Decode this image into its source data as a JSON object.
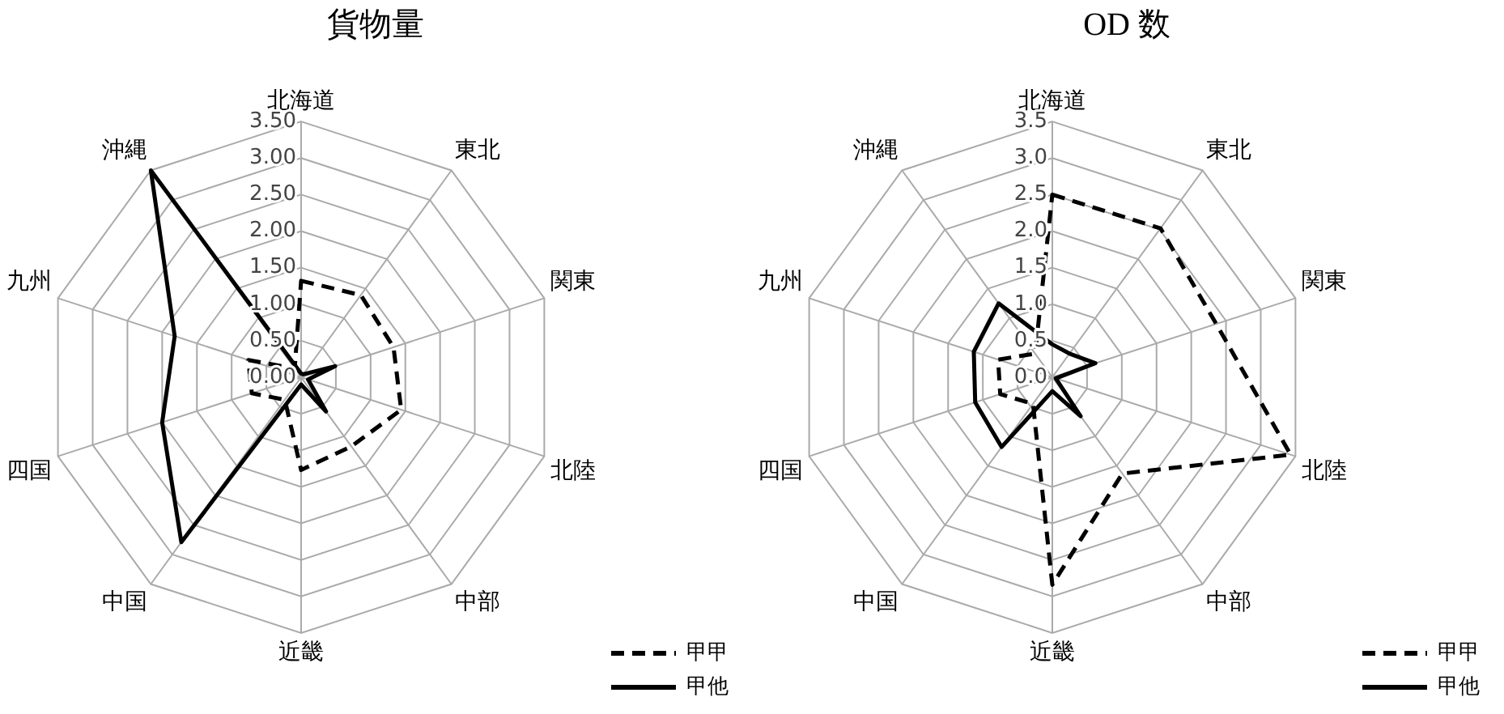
{
  "chart_data": [
    {
      "type": "radar",
      "title": "貨物量",
      "categories": [
        "北海道",
        "東北",
        "関東",
        "北陸",
        "中部",
        "近畿",
        "中国",
        "四国",
        "九州",
        "沖縄"
      ],
      "series": [
        {
          "name": "甲甲",
          "color": "#000000",
          "line_style": "dashed",
          "values": [
            1.32,
            1.39,
            1.33,
            1.44,
            1.17,
            1.27,
            0.38,
            0.71,
            0.76,
            0.15
          ]
        },
        {
          "name": "甲他",
          "color": "#000000",
          "line_style": "solid",
          "values": [
            0.05,
            0.05,
            0.49,
            0.1,
            0.58,
            0.1,
            2.79,
            2.0,
            1.82,
            3.5
          ]
        }
      ],
      "ylim": [
        0,
        3.5
      ],
      "yticks": [
        {
          "value": 0,
          "label": "0.00"
        },
        {
          "value": 0.5,
          "label": "0.50"
        },
        {
          "value": 1,
          "label": "1.00"
        },
        {
          "value": 1.5,
          "label": "1.50"
        },
        {
          "value": 2,
          "label": "2.00"
        },
        {
          "value": 2.5,
          "label": "2.50"
        },
        {
          "value": 3,
          "label": "3.00"
        },
        {
          "value": 3.5,
          "label": "3.50"
        }
      ],
      "grid": true,
      "legend": "bottom right",
      "marker": "none"
    },
    {
      "type": "radar",
      "title": "OD 数",
      "categories": [
        "北海道",
        "東北",
        "関東",
        "北陸",
        "中部",
        "近畿",
        "中国",
        "四国",
        "九州",
        "沖縄"
      ],
      "series": [
        {
          "name": "甲甲",
          "color": "#000000",
          "line_style": "dashed",
          "values": [
            2.5,
            2.52,
            2.36,
            3.43,
            1.63,
            2.84,
            0.45,
            0.75,
            0.78,
            0.4
          ]
        },
        {
          "name": "甲他",
          "color": "#000000",
          "line_style": "solid",
          "values": [
            0.45,
            0.4,
            0.62,
            0.05,
            0.66,
            0.19,
            1.18,
            1.11,
            1.13,
            1.25
          ]
        }
      ],
      "ylim": [
        0,
        3.5
      ],
      "yticks": [
        {
          "value": 0,
          "label": "0.0"
        },
        {
          "value": 0.5,
          "label": "0.5"
        },
        {
          "value": 1,
          "label": "1.0"
        },
        {
          "value": 1.5,
          "label": "1.5"
        },
        {
          "value": 2,
          "label": "2.0"
        },
        {
          "value": 2.5,
          "label": "2.5"
        },
        {
          "value": 3,
          "label": "3.0"
        },
        {
          "value": 3.5,
          "label": "3.5"
        }
      ],
      "grid": true,
      "legend": "bottom right",
      "marker": "none"
    }
  ]
}
